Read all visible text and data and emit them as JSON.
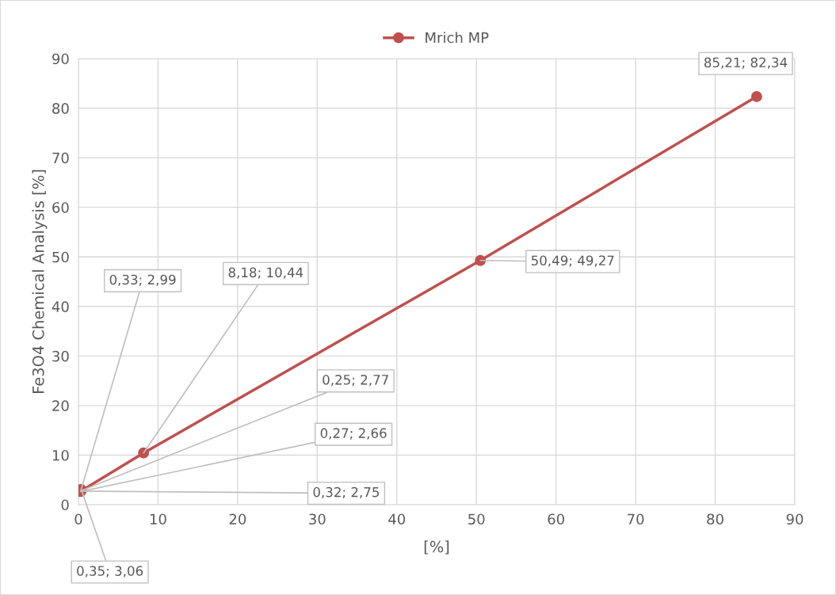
{
  "chart_data": {
    "type": "line",
    "xlabel": "[%]",
    "ylabel": "Fe3O4 Chemical Analysis [%]",
    "x": [
      0.35,
      0.33,
      0.25,
      0.27,
      0.32,
      8.18,
      50.49,
      85.21
    ],
    "series": [
      {
        "name": "Mrich MP",
        "color": "#c0504d",
        "values": [
          3.06,
          2.99,
          2.77,
          2.66,
          2.75,
          10.44,
          49.27,
          82.34
        ],
        "value_labels": [
          "0,35; 3,06",
          "0,33; 2,99",
          "0,25; 2,77",
          "0,27; 2,66",
          "0,32; 2,75",
          "8,18; 10,44",
          "50,49; 49,27",
          "85,21; 82,34"
        ]
      }
    ],
    "xlim": [
      0,
      90
    ],
    "xticks": [
      0,
      10,
      20,
      30,
      40,
      50,
      60,
      70,
      80,
      90
    ],
    "ylim": [
      0,
      90
    ],
    "yticks": [
      0,
      10,
      20,
      30,
      40,
      50,
      60,
      70,
      80,
      90
    ],
    "grid": true,
    "legend": "top",
    "marker": "circle",
    "line_style": "solid"
  }
}
